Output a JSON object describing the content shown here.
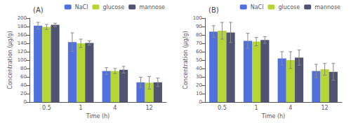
{
  "chart_data": [
    {
      "type": "bar",
      "title": "(A)",
      "xlabel": "Time (h)",
      "ylabel": "Concentration (μg/g)",
      "categories": [
        "0.5",
        "1",
        "4",
        "12"
      ],
      "series": [
        {
          "name": "NaCl",
          "values": [
            182,
            143,
            74,
            47
          ],
          "errors": [
            8,
            22,
            8,
            12
          ]
        },
        {
          "name": "glucose",
          "values": [
            179,
            140,
            74,
            46
          ],
          "errors": [
            6,
            10,
            6,
            15
          ]
        },
        {
          "name": "mannose",
          "values": [
            184,
            141,
            77,
            47
          ],
          "errors": [
            4,
            5,
            8,
            10
          ]
        }
      ],
      "ylim": [
        0,
        200
      ],
      "yticks": [
        0,
        20,
        40,
        60,
        80,
        100,
        120,
        140,
        160,
        180,
        200
      ],
      "grid": false,
      "legend": "upper right"
    },
    {
      "type": "bar",
      "title": "(B)",
      "xlabel": "Time (h)",
      "ylabel": "Concentration (μg/g)",
      "categories": [
        "0.5",
        "1",
        "4",
        "12"
      ],
      "series": [
        {
          "name": "NaCl",
          "values": [
            84,
            73,
            52,
            37
          ],
          "errors": [
            7,
            9,
            8,
            8
          ]
        },
        {
          "name": "glucose",
          "values": [
            85,
            72,
            50,
            39
          ],
          "errors": [
            10,
            5,
            10,
            7
          ]
        },
        {
          "name": "mannose",
          "values": [
            83,
            74,
            53,
            36
          ],
          "errors": [
            12,
            4,
            9,
            10
          ]
        }
      ],
      "ylim": [
        0,
        100
      ],
      "yticks": [
        0,
        10,
        20,
        30,
        40,
        50,
        60,
        70,
        80,
        90,
        100
      ],
      "grid": false,
      "legend": "upper right"
    }
  ]
}
